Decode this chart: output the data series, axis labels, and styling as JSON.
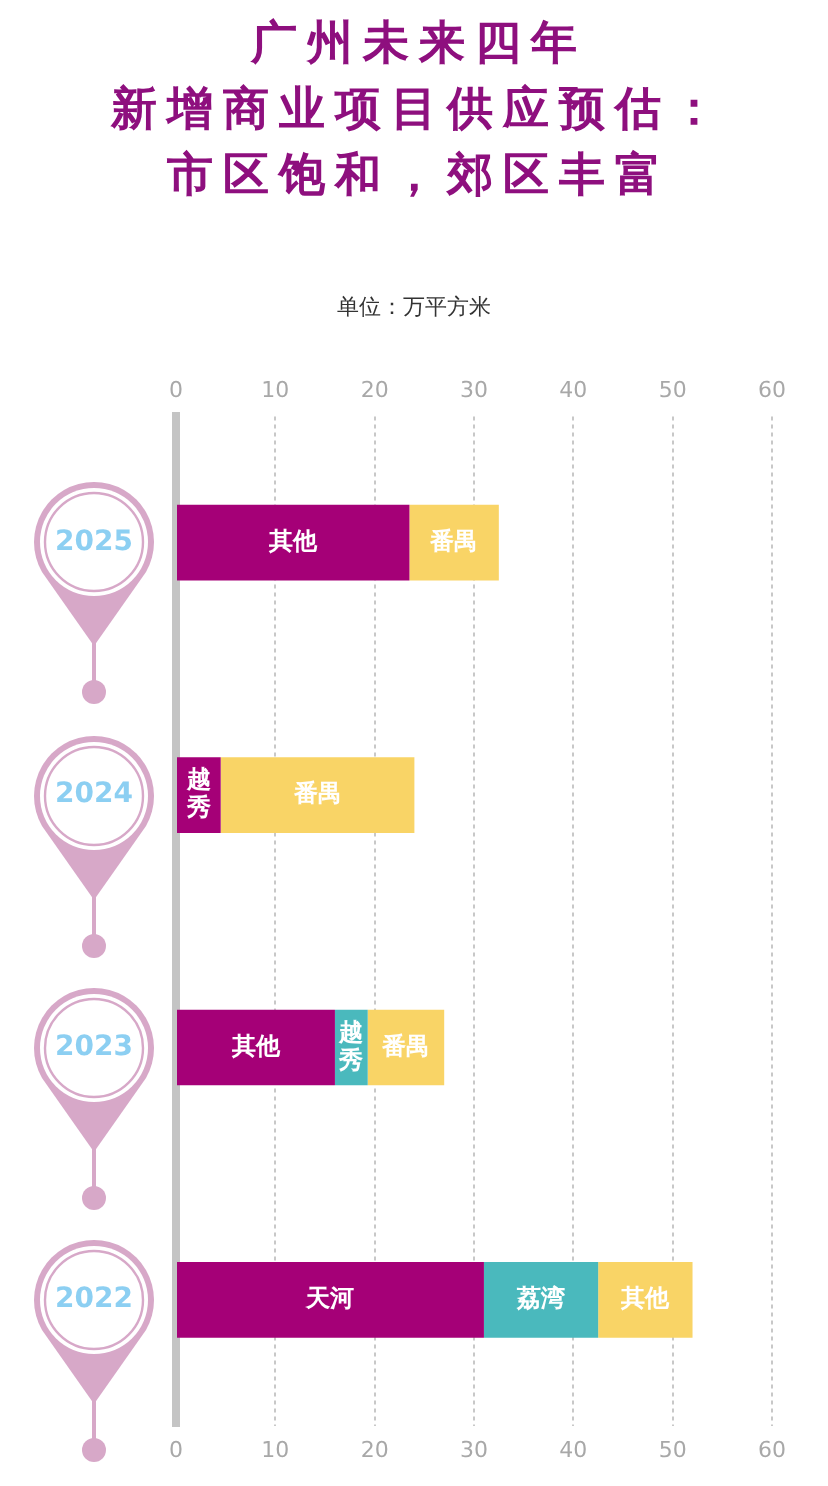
{
  "chart_data": {
    "type": "bar",
    "orientation": "horizontal",
    "stacked": true,
    "title": "广州未来四年新增商业项目供应预估：市区饱和，郊区丰富",
    "subtitle": "单位：万平方米",
    "categories": [
      "2025",
      "2024",
      "2023",
      "2022"
    ],
    "series": [
      {
        "color": "#a50077",
        "values": [
          23.5,
          4.5,
          16,
          31
        ],
        "value_labels": [
          "其他",
          "越秀",
          "其他",
          "天河"
        ]
      },
      {
        "color": "#4ab9bd",
        "values": [
          null,
          null,
          3.3,
          11.5
        ],
        "value_labels": [
          null,
          null,
          "越秀",
          "荔湾"
        ]
      },
      {
        "color": "#f9d466",
        "values": [
          9,
          19.5,
          7.7,
          9.5
        ],
        "value_labels": [
          "番禺",
          "番禺",
          "番禺",
          "其他"
        ]
      }
    ],
    "xlim": [
      0,
      60
    ],
    "xticks": [
      0,
      10,
      20,
      30,
      40,
      50,
      60
    ],
    "x2lim": [
      0,
      60
    ],
    "x2ticks": [
      0,
      10,
      20,
      30,
      40,
      50,
      60
    ],
    "grid": "x"
  }
}
